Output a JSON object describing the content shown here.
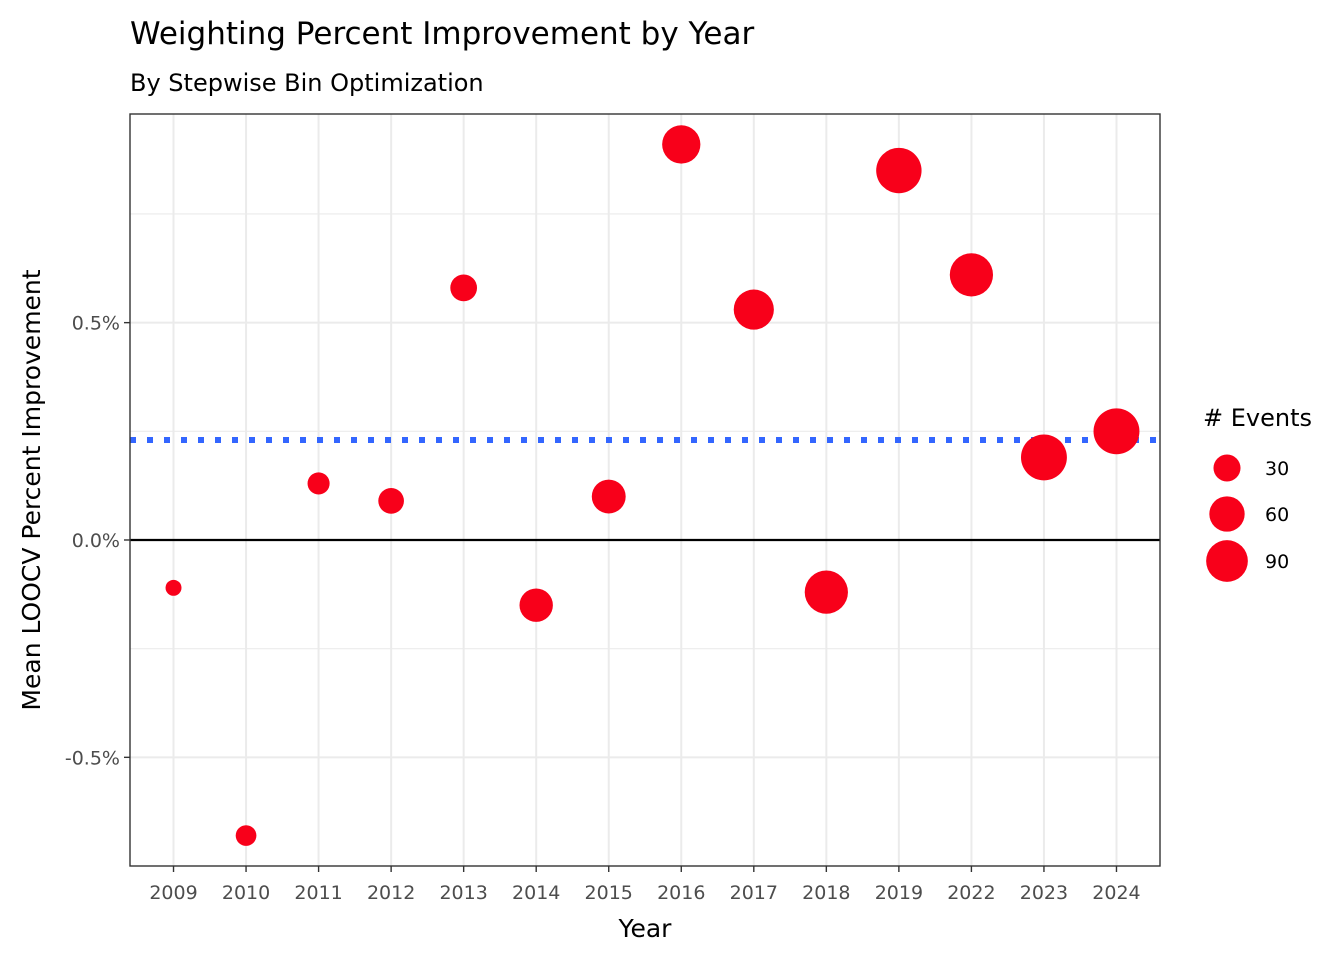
{
  "chart_data": {
    "type": "scatter",
    "title": "Weighting Percent Improvement by Year",
    "subtitle": "By Stepwise Bin Optimization",
    "xlabel": "Year",
    "ylabel": "Mean LOOCV Percent Improvement",
    "categories": [
      "2009",
      "2010",
      "2011",
      "2012",
      "2013",
      "2014",
      "2015",
      "2016",
      "2017",
      "2018",
      "2019",
      "2022",
      "2023",
      "2024"
    ],
    "y_ticks": [
      {
        "value": -0.5,
        "label": "-0.5%"
      },
      {
        "value": 0.0,
        "label": "0.0%"
      },
      {
        "value": 0.5,
        "label": "0.5%"
      }
    ],
    "ylim": [
      -0.75,
      0.98
    ],
    "grid": true,
    "reference_lines": [
      {
        "value": 0.0,
        "style": "solid",
        "color": "#000000"
      },
      {
        "value": 0.23,
        "style": "dotted",
        "color": "#3366ff"
      }
    ],
    "points": [
      {
        "x": "2009",
        "y": -0.11,
        "events": 6
      },
      {
        "x": "2010",
        "y": -0.68,
        "events": 14
      },
      {
        "x": "2011",
        "y": 0.13,
        "events": 17
      },
      {
        "x": "2012",
        "y": 0.09,
        "events": 26
      },
      {
        "x": "2013",
        "y": 0.58,
        "events": 29
      },
      {
        "x": "2014",
        "y": -0.15,
        "events": 52
      },
      {
        "x": "2015",
        "y": 0.1,
        "events": 54
      },
      {
        "x": "2016",
        "y": 0.91,
        "events": 73
      },
      {
        "x": "2017",
        "y": 0.53,
        "events": 82
      },
      {
        "x": "2018",
        "y": -0.12,
        "events": 98
      },
      {
        "x": "2019",
        "y": 0.85,
        "events": 110
      },
      {
        "x": "2022",
        "y": 0.61,
        "events": 98
      },
      {
        "x": "2023",
        "y": 0.19,
        "events": 113
      },
      {
        "x": "2024",
        "y": 0.25,
        "events": 113
      }
    ],
    "point_color": "#f8001a",
    "legend": {
      "title": "# Events",
      "placement": "right",
      "entries": [
        {
          "label": "30",
          "value": 30
        },
        {
          "label": "60",
          "value": 60
        },
        {
          "label": "90",
          "value": 90
        }
      ]
    }
  }
}
